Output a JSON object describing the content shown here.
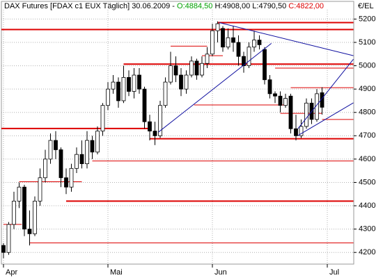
{
  "chart_data": {
    "type": "candlestick",
    "header": {
      "instrument": "DAX Futures [FDAX c1 EUX  Täglich] 30.06.2009 - ",
      "open": "O:4884,50",
      "high_low": " H:4908,00 L:4790,50 ",
      "close": "C:4822,00"
    },
    "unit_label": "€/EL",
    "categories": [
      "Apr",
      null,
      null,
      null,
      null,
      null,
      null,
      null,
      null,
      null,
      null,
      null,
      null,
      null,
      null,
      null,
      null,
      null,
      null,
      null,
      "Mai",
      null,
      null,
      null,
      null,
      null,
      null,
      null,
      null,
      null,
      null,
      null,
      null,
      null,
      null,
      null,
      null,
      null,
      null,
      null,
      "Jun",
      null,
      null,
      null,
      null,
      null,
      null,
      null,
      null,
      null,
      null,
      null,
      null,
      null,
      null,
      null,
      null,
      null,
      null,
      null,
      null,
      null,
      "Jul"
    ],
    "open": [
      4230,
      4200,
      4320,
      4420,
      4480,
      4300,
      4280,
      4420,
      4520,
      4600,
      4680,
      4640,
      4520,
      4480,
      4560,
      4620,
      4580,
      4680,
      4630,
      4720,
      4830,
      4900,
      4930,
      4850,
      4950,
      4890,
      4960,
      4900,
      4760,
      4720,
      4700,
      4830,
      4930,
      5000,
      4960,
      4900,
      4960,
      5020,
      4960,
      5010,
      5050,
      5150,
      5160,
      5080,
      5120,
      5100,
      5040,
      5000,
      5080,
      5110,
      5070,
      4940,
      4880,
      4870,
      4830,
      4870,
      4730,
      4700,
      4740,
      4840,
      4770,
      4884.5,
      null
    ],
    "high": [
      4240,
      4330,
      4460,
      4500,
      4490,
      4380,
      4440,
      4560,
      4640,
      4710,
      4720,
      4650,
      4560,
      4580,
      4650,
      4680,
      4720,
      4700,
      4740,
      4840,
      4930,
      4960,
      4950,
      5000,
      4980,
      4990,
      4990,
      4910,
      4790,
      4760,
      4850,
      4950,
      5060,
      5040,
      4990,
      4980,
      5040,
      5030,
      5040,
      5080,
      5180,
      5190,
      5170,
      5160,
      5170,
      5130,
      5060,
      5100,
      5150,
      5130,
      5080,
      4960,
      4890,
      4890,
      4880,
      4880,
      4790,
      4770,
      4860,
      4860,
      4900,
      4908,
      null
    ],
    "low": [
      4175,
      4190,
      4300,
      4390,
      4270,
      4230,
      4270,
      4400,
      4500,
      4580,
      4600,
      4480,
      4450,
      4460,
      4540,
      4560,
      4560,
      4600,
      4620,
      4700,
      4810,
      4880,
      4820,
      4840,
      4870,
      4860,
      4880,
      4730,
      4680,
      4660,
      4690,
      4820,
      4920,
      4930,
      4870,
      4880,
      4950,
      4940,
      4950,
      4990,
      5040,
      5100,
      5060,
      5070,
      5060,
      5000,
      4970,
      4990,
      5060,
      5070,
      4920,
      4860,
      4840,
      4800,
      4820,
      4710,
      4680,
      4690,
      4730,
      4750,
      4760,
      4790.5,
      null
    ],
    "close": [
      4200,
      4320,
      4420,
      4480,
      4300,
      4280,
      4420,
      4520,
      4600,
      4680,
      4640,
      4520,
      4480,
      4560,
      4620,
      4580,
      4680,
      4630,
      4720,
      4830,
      4900,
      4930,
      4850,
      4950,
      4890,
      4960,
      4900,
      4760,
      4720,
      4700,
      4830,
      4930,
      5000,
      4960,
      4900,
      4960,
      5020,
      4960,
      5010,
      5050,
      5150,
      5180,
      5080,
      5120,
      5100,
      5040,
      5000,
      5080,
      5110,
      5090,
      4940,
      4880,
      4870,
      4830,
      4860,
      4730,
      4700,
      4740,
      4840,
      4770,
      4880,
      4822,
      null
    ],
    "ylim": [
      4150,
      5240
    ],
    "yticks": [
      4200,
      4300,
      4400,
      4500,
      4600,
      4700,
      4800,
      4900,
      5000,
      5100,
      5200
    ],
    "grid": true,
    "up_color": "#ffffff",
    "down_color": "#000000",
    "level_color": "#dd0000",
    "trend_color": "#1010a0",
    "levels": [
      {
        "value": 5185,
        "from": 41,
        "to": 67,
        "thick": true
      },
      {
        "value": 5155,
        "from": -0.5,
        "to": 67,
        "thick": true
      },
      {
        "value": 5084,
        "from": 32,
        "to": 39,
        "thick": false
      },
      {
        "value": 5043,
        "from": 38,
        "to": 42,
        "thick": false
      },
      {
        "value": 5007,
        "from": 23,
        "to": 67,
        "thick": true
      },
      {
        "value": 4990,
        "from": 52,
        "to": 67,
        "thick": false
      },
      {
        "value": 4906,
        "from": 55,
        "to": 67,
        "thick": false
      },
      {
        "value": 4832,
        "from": 36.5,
        "to": 54,
        "thick": false
      },
      {
        "value": 4796,
        "from": 53,
        "to": 61,
        "thick": false
      },
      {
        "value": 4770,
        "from": 61,
        "to": 67,
        "thick": false
      },
      {
        "value": 4731,
        "from": -0.5,
        "to": 28,
        "thick": true
      },
      {
        "value": 4687,
        "from": 28,
        "to": 67,
        "thick": true
      },
      {
        "value": 4592,
        "from": 17,
        "to": 67,
        "thick": false
      },
      {
        "value": 4503,
        "from": 3,
        "to": 15,
        "thick": false
      },
      {
        "value": 4420,
        "from": 12,
        "to": 67,
        "thick": true
      },
      {
        "value": 4320,
        "from": 0,
        "to": 3.5,
        "thick": false
      },
      {
        "value": 4241,
        "from": 5,
        "to": 67,
        "thick": false
      }
    ],
    "trendlines": [
      {
        "x": [
          29.7,
          51.3
        ],
        "y": [
          4716,
          5096
        ]
      },
      {
        "x": [
          41.3,
          67
        ],
        "y": [
          5185,
          5043
        ]
      },
      {
        "x": [
          56.4,
          67
        ],
        "y": [
          4731,
          5028
        ]
      },
      {
        "x": [
          56.4,
          67
        ],
        "y": [
          4701,
          4841
        ]
      }
    ]
  }
}
